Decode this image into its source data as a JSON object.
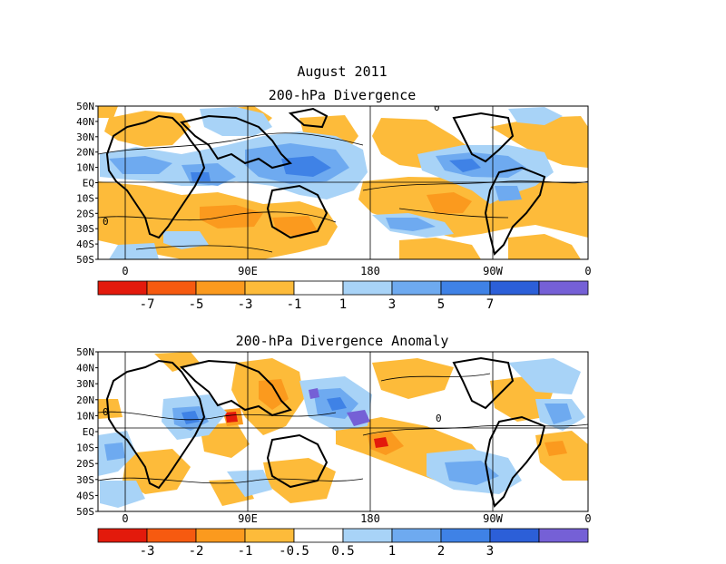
{
  "page_title": "August 2011",
  "panels": [
    {
      "title": "200-hPa Divergence",
      "lat_labels": [
        "50N",
        "40N",
        "30N",
        "20N",
        "10N",
        "EQ",
        "10S",
        "20S",
        "30S",
        "40S",
        "50S"
      ],
      "lon_labels": [
        "0",
        "90E",
        "180",
        "90W",
        "0"
      ],
      "colorbar": {
        "colors": [
          "#e31a0c",
          "#f65a10",
          "#fb9a1e",
          "#fdbb3a",
          "#ffffff",
          "#a8d3f7",
          "#6eaaf0",
          "#3f82e6",
          "#2c5fd8",
          "#7560d6"
        ],
        "labels": [
          "-7",
          "-5",
          "-3",
          "-1",
          "1",
          "3",
          "5",
          "7"
        ]
      },
      "contour_zero_label": "0"
    },
    {
      "title": "200-hPa Divergence Anomaly",
      "lat_labels": [
        "50N",
        "40N",
        "30N",
        "20N",
        "10N",
        "EQ",
        "10S",
        "20S",
        "30S",
        "40S",
        "50S"
      ],
      "lon_labels": [
        "0",
        "90E",
        "180",
        "90W",
        "0"
      ],
      "colorbar": {
        "colors": [
          "#e31a0c",
          "#f65a10",
          "#fb9a1e",
          "#fdbb3a",
          "#ffffff",
          "#a8d3f7",
          "#6eaaf0",
          "#3f82e6",
          "#2c5fd8",
          "#7560d6"
        ],
        "labels": [
          "-3",
          "-2",
          "-1",
          "-0.5",
          "0.5",
          "1",
          "2",
          "3"
        ]
      },
      "contour_zero_label": "0"
    }
  ],
  "colors": {
    "orange": "#fdbb3a",
    "dark_orange": "#fb9a1e",
    "red": "#e31a0c",
    "light_blue": "#a8d3f7",
    "blue": "#6eaaf0",
    "dark_blue": "#3f82e6",
    "purple": "#7560d6"
  }
}
